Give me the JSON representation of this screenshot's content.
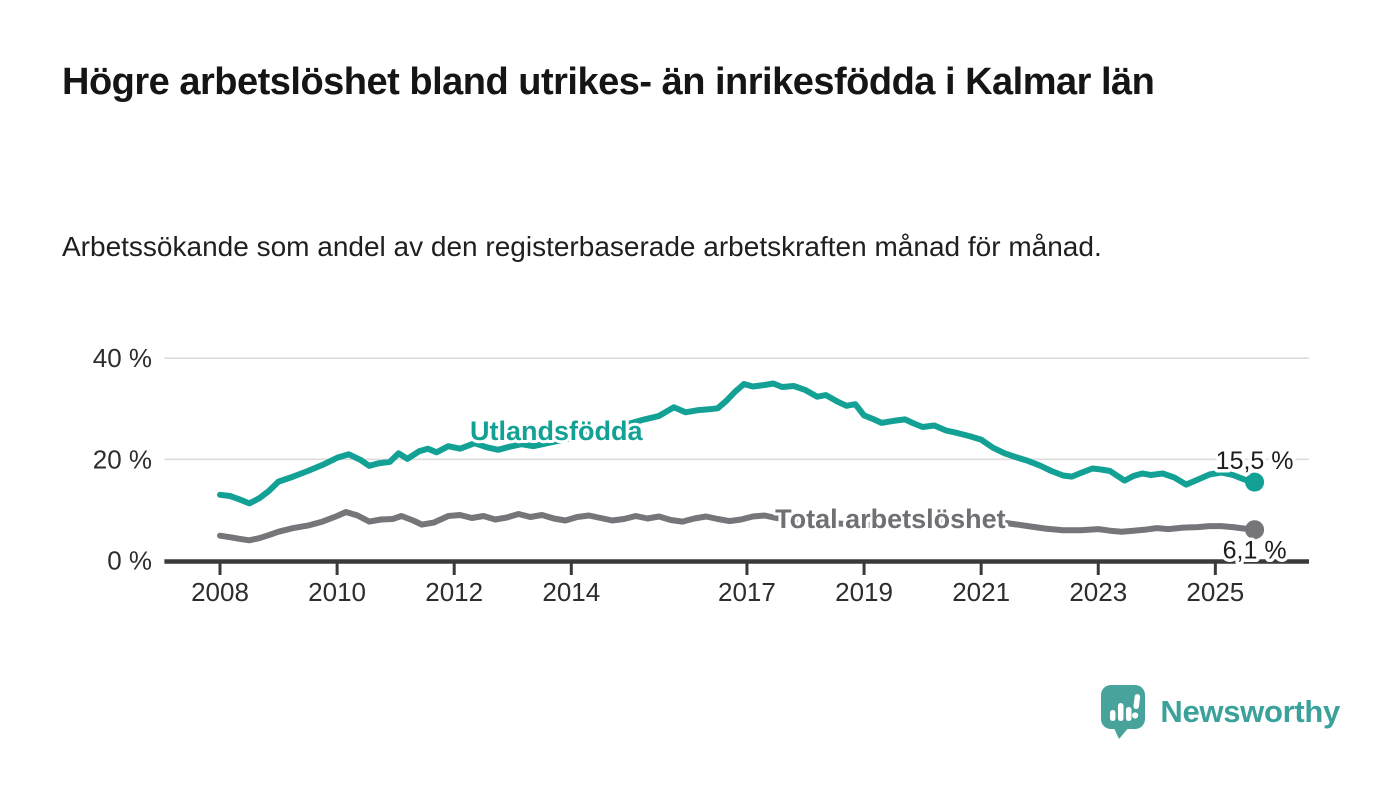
{
  "chart_data": {
    "type": "line",
    "title": "Högre arbetslöshet bland utrikes- än inrikesfödda i Kalmar län",
    "subtitle": "Arbetssökande som andel av den registerbaserade arbetskraften månad för månad.",
    "unit": "%",
    "grid": "horizontal-only",
    "legend_position": "inline-labels-on-lines",
    "x_axis": {
      "range_years": [
        2007.05,
        2026.6
      ],
      "ticks": [
        2008,
        2010,
        2012,
        2014,
        2017,
        2019,
        2021,
        2023,
        2025
      ],
      "tick_labels": [
        "2008",
        "2010",
        "2012",
        "2014",
        "2017",
        "2019",
        "2021",
        "2023",
        "2025"
      ]
    },
    "y_axis": {
      "range": [
        0,
        40
      ],
      "ticks": [
        {
          "value": 0,
          "label": "0 %"
        },
        {
          "value": 20,
          "label": "20 %"
        },
        {
          "value": 40,
          "label": "40 %"
        }
      ]
    },
    "series": [
      {
        "id": "total-arbetsloshet",
        "name": "Total arbetslöshet",
        "color": "#75757a",
        "label_color": "#6f6f74",
        "annotation": {
          "text": "Total arbetslöshet",
          "x": 2017.48,
          "y": 6.43,
          "anchor": "start"
        },
        "end_label": "6,1 %",
        "end_label_position": "below",
        "end_value": 6.1,
        "points": [
          [
            2008.0,
            4.9
          ],
          [
            2008.17,
            4.6
          ],
          [
            2008.33,
            4.3
          ],
          [
            2008.5,
            4.0
          ],
          [
            2008.67,
            4.4
          ],
          [
            2008.83,
            5.0
          ],
          [
            2009.0,
            5.7
          ],
          [
            2009.25,
            6.4
          ],
          [
            2009.5,
            6.9
          ],
          [
            2009.75,
            7.7
          ],
          [
            2010.0,
            8.8
          ],
          [
            2010.15,
            9.6
          ],
          [
            2010.35,
            8.9
          ],
          [
            2010.55,
            7.7
          ],
          [
            2010.75,
            8.1
          ],
          [
            2010.95,
            8.2
          ],
          [
            2011.1,
            8.8
          ],
          [
            2011.3,
            7.9
          ],
          [
            2011.45,
            7.1
          ],
          [
            2011.65,
            7.5
          ],
          [
            2011.9,
            8.8
          ],
          [
            2012.1,
            9.0
          ],
          [
            2012.3,
            8.4
          ],
          [
            2012.5,
            8.8
          ],
          [
            2012.7,
            8.1
          ],
          [
            2012.9,
            8.5
          ],
          [
            2013.1,
            9.2
          ],
          [
            2013.3,
            8.6
          ],
          [
            2013.5,
            9.0
          ],
          [
            2013.7,
            8.3
          ],
          [
            2013.9,
            7.9
          ],
          [
            2014.1,
            8.6
          ],
          [
            2014.3,
            8.9
          ],
          [
            2014.5,
            8.4
          ],
          [
            2014.7,
            7.9
          ],
          [
            2014.9,
            8.2
          ],
          [
            2015.1,
            8.8
          ],
          [
            2015.3,
            8.3
          ],
          [
            2015.5,
            8.7
          ],
          [
            2015.7,
            8.0
          ],
          [
            2015.9,
            7.7
          ],
          [
            2016.1,
            8.3
          ],
          [
            2016.3,
            8.7
          ],
          [
            2016.5,
            8.2
          ],
          [
            2016.7,
            7.8
          ],
          [
            2016.9,
            8.1
          ],
          [
            2017.1,
            8.7
          ],
          [
            2017.3,
            8.9
          ],
          [
            2017.5,
            8.4
          ],
          [
            2017.75,
            8.1
          ],
          [
            2018.0,
            7.8
          ],
          [
            2018.3,
            7.6
          ],
          [
            2018.6,
            7.3
          ],
          [
            2018.9,
            7.1
          ],
          [
            2019.2,
            7.0
          ],
          [
            2019.5,
            7.2
          ],
          [
            2019.8,
            7.0
          ],
          [
            2020.1,
            7.4
          ],
          [
            2020.4,
            8.3
          ],
          [
            2020.6,
            8.6
          ],
          [
            2020.9,
            8.3
          ],
          [
            2021.2,
            7.8
          ],
          [
            2021.5,
            7.3
          ],
          [
            2021.8,
            6.8
          ],
          [
            2022.1,
            6.3
          ],
          [
            2022.4,
            6.0
          ],
          [
            2022.7,
            6.0
          ],
          [
            2023.0,
            6.2
          ],
          [
            2023.2,
            5.9
          ],
          [
            2023.4,
            5.7
          ],
          [
            2023.6,
            5.9
          ],
          [
            2023.8,
            6.1
          ],
          [
            2024.0,
            6.4
          ],
          [
            2024.2,
            6.2
          ],
          [
            2024.45,
            6.5
          ],
          [
            2024.7,
            6.6
          ],
          [
            2024.9,
            6.8
          ],
          [
            2025.1,
            6.8
          ],
          [
            2025.3,
            6.6
          ],
          [
            2025.5,
            6.3
          ],
          [
            2025.67,
            6.1
          ]
        ]
      },
      {
        "id": "utlandsfodda",
        "name": "Utlandsfödda",
        "color": "#12a194",
        "label_color": "#12a194",
        "annotation": {
          "text": "Utlandsfödda",
          "x": 2012.27,
          "y": 23.8,
          "anchor": "start"
        },
        "end_label": "15,5 %",
        "end_label_position": "above",
        "end_value": 15.5,
        "points": [
          [
            2008.0,
            13.0
          ],
          [
            2008.17,
            12.75
          ],
          [
            2008.33,
            12.1
          ],
          [
            2008.5,
            11.3
          ],
          [
            2008.67,
            12.3
          ],
          [
            2008.83,
            13.7
          ],
          [
            2009.0,
            15.6
          ],
          [
            2009.25,
            16.6
          ],
          [
            2009.5,
            17.7
          ],
          [
            2009.75,
            18.9
          ],
          [
            2010.0,
            20.3
          ],
          [
            2010.2,
            21.0
          ],
          [
            2010.4,
            19.9
          ],
          [
            2010.55,
            18.7
          ],
          [
            2010.7,
            19.2
          ],
          [
            2010.9,
            19.5
          ],
          [
            2011.05,
            21.2
          ],
          [
            2011.2,
            20.1
          ],
          [
            2011.4,
            21.6
          ],
          [
            2011.55,
            22.1
          ],
          [
            2011.7,
            21.4
          ],
          [
            2011.9,
            22.6
          ],
          [
            2012.1,
            22.1
          ],
          [
            2012.35,
            23.2
          ],
          [
            2012.55,
            22.4
          ],
          [
            2012.75,
            21.9
          ],
          [
            2012.95,
            22.5
          ],
          [
            2013.15,
            23.0
          ],
          [
            2013.35,
            22.6
          ],
          [
            2013.55,
            23.1
          ],
          [
            2013.75,
            23.6
          ],
          [
            2014.0,
            24.2
          ],
          [
            2014.25,
            24.9
          ],
          [
            2014.5,
            25.5
          ],
          [
            2014.75,
            26.3
          ],
          [
            2015.0,
            27.1
          ],
          [
            2015.25,
            27.9
          ],
          [
            2015.5,
            28.6
          ],
          [
            2015.75,
            30.3
          ],
          [
            2015.95,
            29.3
          ],
          [
            2016.15,
            29.7
          ],
          [
            2016.35,
            29.9
          ],
          [
            2016.5,
            30.1
          ],
          [
            2016.65,
            31.6
          ],
          [
            2016.8,
            33.4
          ],
          [
            2016.95,
            34.9
          ],
          [
            2017.1,
            34.4
          ],
          [
            2017.3,
            34.7
          ],
          [
            2017.45,
            35.0
          ],
          [
            2017.6,
            34.3
          ],
          [
            2017.8,
            34.5
          ],
          [
            2018.0,
            33.7
          ],
          [
            2018.2,
            32.4
          ],
          [
            2018.35,
            32.7
          ],
          [
            2018.55,
            31.4
          ],
          [
            2018.7,
            30.6
          ],
          [
            2018.85,
            30.9
          ],
          [
            2019.0,
            28.7
          ],
          [
            2019.15,
            28.0
          ],
          [
            2019.3,
            27.2
          ],
          [
            2019.5,
            27.6
          ],
          [
            2019.7,
            27.9
          ],
          [
            2019.85,
            27.1
          ],
          [
            2020.0,
            26.4
          ],
          [
            2020.2,
            26.7
          ],
          [
            2020.4,
            25.7
          ],
          [
            2020.6,
            25.2
          ],
          [
            2020.8,
            24.6
          ],
          [
            2021.0,
            23.9
          ],
          [
            2021.2,
            22.3
          ],
          [
            2021.4,
            21.2
          ],
          [
            2021.6,
            20.4
          ],
          [
            2021.8,
            19.7
          ],
          [
            2022.0,
            18.8
          ],
          [
            2022.2,
            17.7
          ],
          [
            2022.4,
            16.8
          ],
          [
            2022.55,
            16.6
          ],
          [
            2022.7,
            17.3
          ],
          [
            2022.9,
            18.2
          ],
          [
            2023.05,
            18.0
          ],
          [
            2023.2,
            17.7
          ],
          [
            2023.45,
            15.8
          ],
          [
            2023.6,
            16.7
          ],
          [
            2023.75,
            17.2
          ],
          [
            2023.9,
            16.9
          ],
          [
            2024.1,
            17.2
          ],
          [
            2024.3,
            16.4
          ],
          [
            2024.5,
            15.0
          ],
          [
            2024.7,
            16.0
          ],
          [
            2024.9,
            17.0
          ],
          [
            2025.1,
            17.4
          ],
          [
            2025.3,
            16.9
          ],
          [
            2025.5,
            16.0
          ],
          [
            2025.67,
            15.5
          ]
        ]
      }
    ]
  },
  "colors": {
    "series_utlandsfodda": "#12a194",
    "series_total": "#75757a",
    "grid_line": "#dcdcdc",
    "axis_line": "#3a3a3a",
    "tick_text": "#2d2d2d",
    "end_label_text": "#1d1d1d",
    "title_text": "#151515",
    "brand_teal": "#3aa29a",
    "logo_bubble_teal": "#48a39c"
  },
  "branding": {
    "brand_name": "Newsworthy",
    "logo_icon": "bar-chart-speech-bubble-icon"
  }
}
